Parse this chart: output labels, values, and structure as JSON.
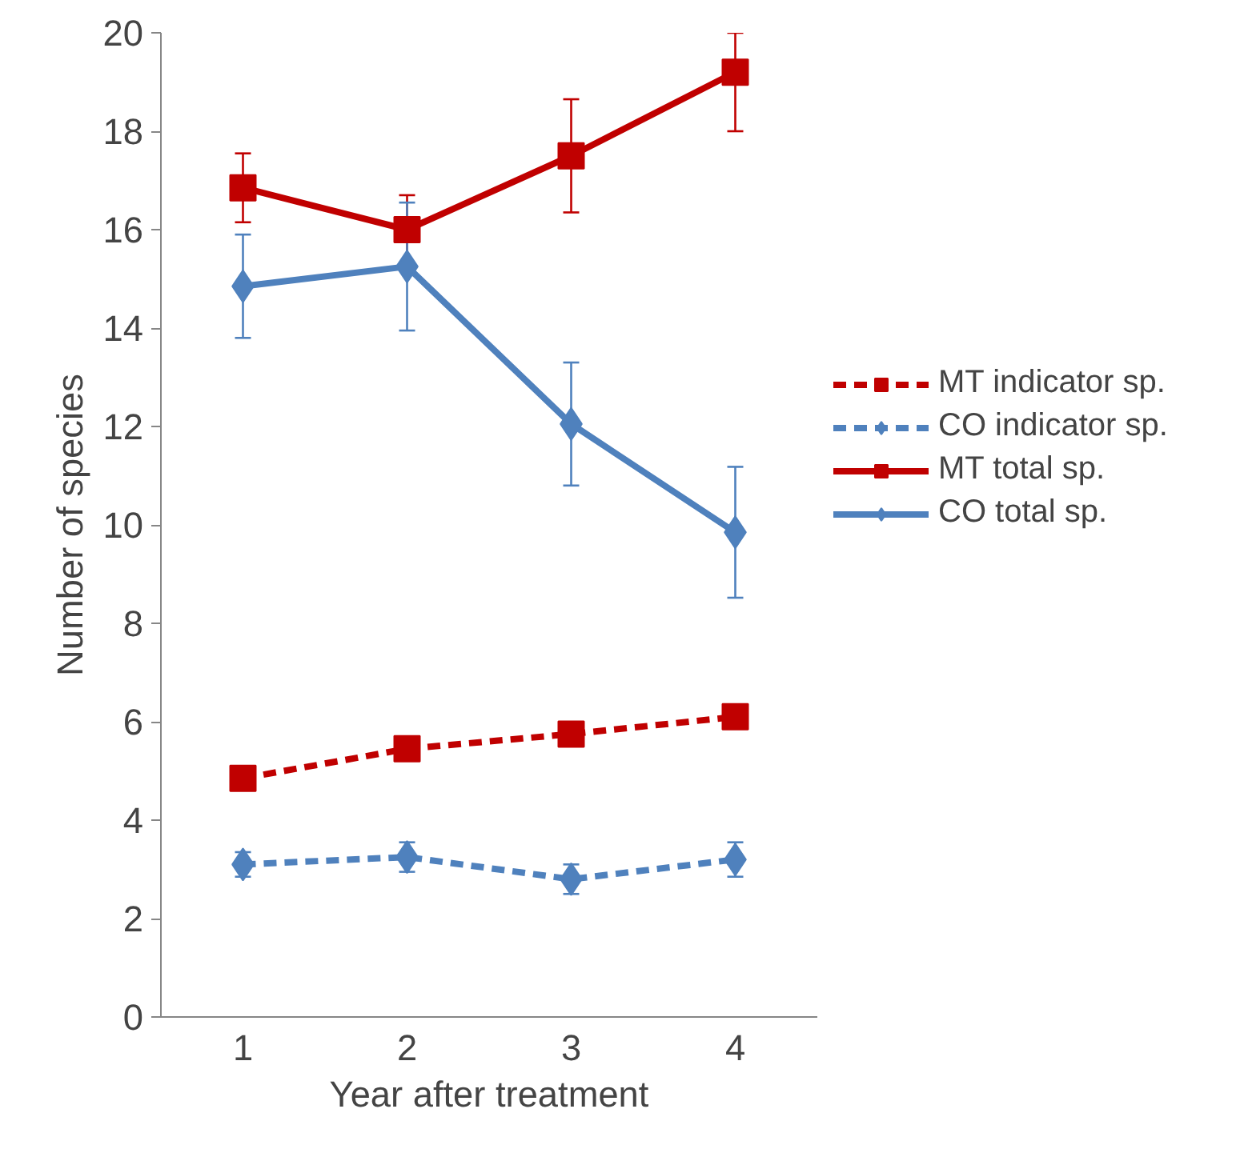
{
  "chart_data": {
    "type": "line",
    "xlabel": "Year after treatment",
    "ylabel": "Number of species",
    "categories": [
      "1",
      "2",
      "3",
      "4"
    ],
    "ylim": [
      0,
      20
    ],
    "yticks": [
      0,
      2,
      4,
      6,
      8,
      10,
      12,
      14,
      16,
      18,
      20
    ],
    "grid": false,
    "legend": "right",
    "series": [
      {
        "name": "MT indicator sp.",
        "color": "#c00000",
        "marker": "square",
        "line_style": "dashed",
        "values": [
          4.85,
          5.45,
          5.75,
          6.1
        ]
      },
      {
        "name": "CO indicator sp.",
        "color": "#4f81bd",
        "marker": "diamond",
        "line_style": "dashed",
        "values": [
          3.1,
          3.25,
          2.8,
          3.2
        ],
        "errors": [
          0.25,
          0.3,
          0.3,
          0.35
        ]
      },
      {
        "name": "MT total sp.",
        "color": "#c00000",
        "marker": "square",
        "line_style": "solid",
        "values": [
          16.85,
          16.0,
          17.5,
          19.2
        ],
        "errors": [
          0.7,
          0.7,
          1.15,
          [
            18.0,
            20.0
          ]
        ]
      },
      {
        "name": "CO total sp.",
        "color": "#4f81bd",
        "marker": "diamond",
        "line_style": "solid",
        "values": [
          14.85,
          15.25,
          12.05,
          9.85
        ],
        "errors": [
          1.05,
          1.3,
          1.25,
          1.33
        ]
      }
    ]
  }
}
